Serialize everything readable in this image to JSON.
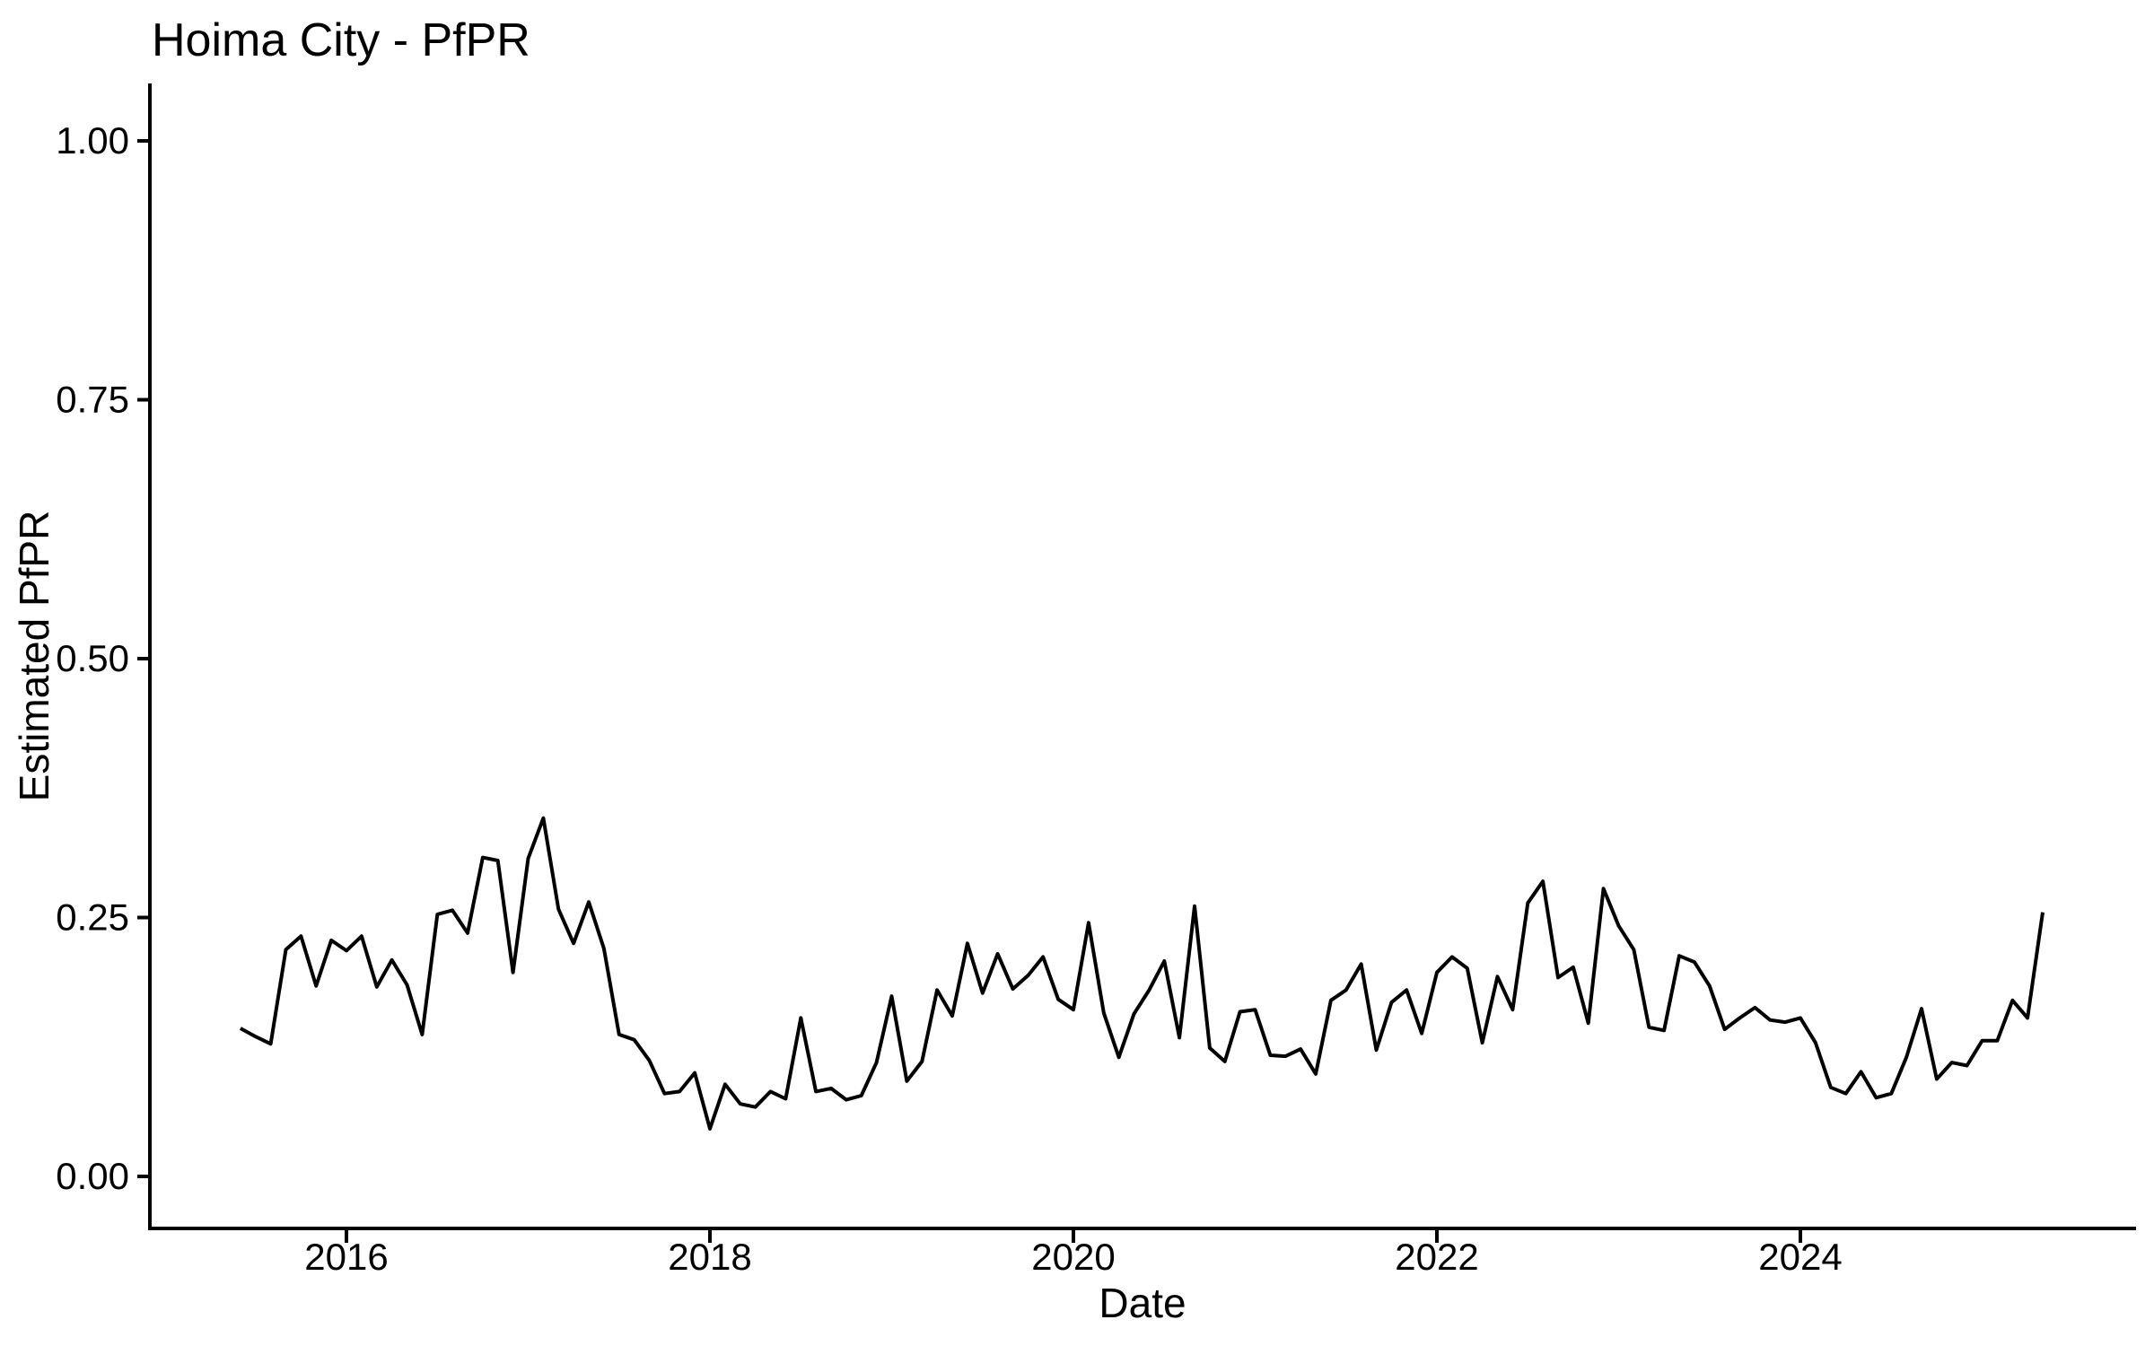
{
  "title": "Hoima City - PfPR",
  "colors": {
    "background": "#ffffff",
    "line": "#000000",
    "axis": "#000000",
    "text": "#000000"
  },
  "chart_data": {
    "type": "line",
    "title": "Hoima City - PfPR",
    "xlabel": "Date",
    "ylabel": "Estimated PfPR",
    "grid": false,
    "legend_position": "none",
    "line_color": "#000000",
    "ylim": [
      0,
      1
    ],
    "y_ticks": {
      "values": [
        0,
        0.25,
        0.5,
        0.75,
        1.0
      ],
      "labels": [
        "0.00",
        "0.25",
        "0.50",
        "0.75",
        "1.00"
      ]
    },
    "x_ticks": {
      "years": [
        2016,
        2018,
        2020,
        2022,
        2024
      ],
      "labels": [
        "2016",
        "2018",
        "2020",
        "2022",
        "2024"
      ]
    },
    "series": [
      {
        "name": "Estimated PfPR",
        "x": [
          "2015-06",
          "2015-07",
          "2015-08",
          "2015-09",
          "2015-10",
          "2015-11",
          "2015-12",
          "2016-01",
          "2016-02",
          "2016-03",
          "2016-04",
          "2016-05",
          "2016-06",
          "2016-07",
          "2016-08",
          "2016-09",
          "2016-10",
          "2016-11",
          "2016-12",
          "2017-01",
          "2017-02",
          "2017-03",
          "2017-04",
          "2017-05",
          "2017-06",
          "2017-07",
          "2017-08",
          "2017-09",
          "2017-10",
          "2017-11",
          "2017-12",
          "2018-01",
          "2018-02",
          "2018-03",
          "2018-04",
          "2018-05",
          "2018-06",
          "2018-07",
          "2018-08",
          "2018-09",
          "2018-10",
          "2018-11",
          "2018-12",
          "2019-01",
          "2019-02",
          "2019-03",
          "2019-04",
          "2019-05",
          "2019-06",
          "2019-07",
          "2019-08",
          "2019-09",
          "2019-10",
          "2019-11",
          "2019-12",
          "2020-01",
          "2020-02",
          "2020-03",
          "2020-04",
          "2020-05",
          "2020-06",
          "2020-07",
          "2020-08",
          "2020-09",
          "2020-10",
          "2020-11",
          "2020-12",
          "2021-01",
          "2021-02",
          "2021-03",
          "2021-04",
          "2021-05",
          "2021-06",
          "2021-07",
          "2021-08",
          "2021-09",
          "2021-10",
          "2021-11",
          "2021-12",
          "2022-01",
          "2022-02",
          "2022-03",
          "2022-04",
          "2022-05",
          "2022-06",
          "2022-07",
          "2022-08",
          "2022-09",
          "2022-10",
          "2022-11",
          "2022-12",
          "2023-01",
          "2023-02",
          "2023-03",
          "2023-04",
          "2023-05",
          "2023-06",
          "2023-07",
          "2023-08",
          "2023-09",
          "2023-10",
          "2023-11",
          "2023-12",
          "2024-01",
          "2024-02",
          "2024-03",
          "2024-04",
          "2024-05",
          "2024-06",
          "2024-07",
          "2024-08",
          "2024-09",
          "2024-10",
          "2024-11",
          "2024-12",
          "2025-01",
          "2025-02",
          "2025-03",
          "2025-04",
          "2025-05"
        ],
        "values": [
          0.143,
          0.135,
          0.128,
          0.219,
          0.232,
          0.184,
          0.228,
          0.218,
          0.232,
          0.183,
          0.209,
          0.185,
          0.137,
          0.253,
          0.257,
          0.235,
          0.308,
          0.305,
          0.197,
          0.307,
          0.346,
          0.258,
          0.225,
          0.265,
          0.22,
          0.137,
          0.132,
          0.112,
          0.08,
          0.082,
          0.1,
          0.046,
          0.089,
          0.07,
          0.067,
          0.082,
          0.075,
          0.153,
          0.082,
          0.085,
          0.074,
          0.078,
          0.11,
          0.174,
          0.092,
          0.111,
          0.18,
          0.155,
          0.225,
          0.177,
          0.215,
          0.181,
          0.194,
          0.212,
          0.171,
          0.161,
          0.245,
          0.158,
          0.115,
          0.157,
          0.18,
          0.208,
          0.134,
          0.261,
          0.124,
          0.111,
          0.159,
          0.161,
          0.117,
          0.116,
          0.123,
          0.099,
          0.17,
          0.18,
          0.205,
          0.122,
          0.168,
          0.18,
          0.138,
          0.197,
          0.212,
          0.201,
          0.129,
          0.193,
          0.161,
          0.264,
          0.285,
          0.192,
          0.202,
          0.148,
          0.278,
          0.242,
          0.219,
          0.144,
          0.141,
          0.213,
          0.207,
          0.184,
          0.142,
          0.153,
          0.163,
          0.151,
          0.149,
          0.153,
          0.129,
          0.086,
          0.08,
          0.101,
          0.076,
          0.08,
          0.115,
          0.162,
          0.094,
          0.11,
          0.107,
          0.131,
          0.131,
          0.17,
          0.153,
          0.255
        ]
      }
    ]
  }
}
